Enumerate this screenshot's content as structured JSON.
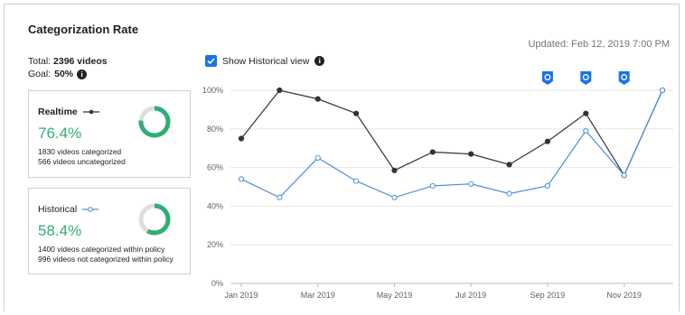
{
  "header": {
    "title": "Categorization Rate",
    "updated": "Updated: Feb 12, 2019 7:00 PM"
  },
  "summary": {
    "total_label": "Total:",
    "total_value": "2396 videos",
    "goal_label": "Goal:",
    "goal_value": "50%",
    "info_icon": "info-icon"
  },
  "realtime": {
    "label": "Realtime",
    "percent": "76.4%",
    "percent_value": 76.4,
    "line1": "1830 videos categorized",
    "line2": "566 videos uncategorized"
  },
  "historical": {
    "label": "Historical",
    "percent": "58.4%",
    "percent_value": 58.4,
    "line1": "1400 videos categorized within policy",
    "line2": "996 videos not categorized within policy"
  },
  "toggle": {
    "label": "Show Historical view",
    "checked": true
  },
  "colors": {
    "realtime": "#333333",
    "historical": "#4a8fd9",
    "accent_green": "#2fae74",
    "checkbox_blue": "#1a73e8",
    "marker_blue": "#1a73e8"
  },
  "chart_data": {
    "type": "line",
    "x": [
      0,
      1,
      2,
      3,
      4,
      5,
      6,
      7,
      8,
      9,
      10,
      11
    ],
    "x_tick_labels": [
      {
        "x": 0,
        "label": "Jan 2019"
      },
      {
        "x": 2,
        "label": "Mar 2019"
      },
      {
        "x": 4,
        "label": "May 2019"
      },
      {
        "x": 6,
        "label": "Jul 2019"
      },
      {
        "x": 8,
        "label": "Sep 2019"
      },
      {
        "x": 10,
        "label": "Nov 2019"
      }
    ],
    "y_ticks": [
      "0%",
      "20%",
      "40%",
      "60%",
      "80%",
      "100%"
    ],
    "y_tick_values": [
      0,
      20,
      40,
      60,
      80,
      100
    ],
    "ylim": [
      0,
      100
    ],
    "grid": true,
    "series": [
      {
        "key": "realtime",
        "values": [
          75,
          100,
          95.5,
          88,
          58.5,
          68,
          67,
          61.5,
          73.5,
          88,
          56,
          100
        ]
      },
      {
        "key": "historical",
        "values": [
          54,
          44.5,
          65,
          53,
          44.5,
          50.5,
          51.5,
          46.5,
          50.5,
          79,
          56,
          100
        ]
      }
    ],
    "event_markers_x": [
      8,
      9,
      10
    ]
  }
}
